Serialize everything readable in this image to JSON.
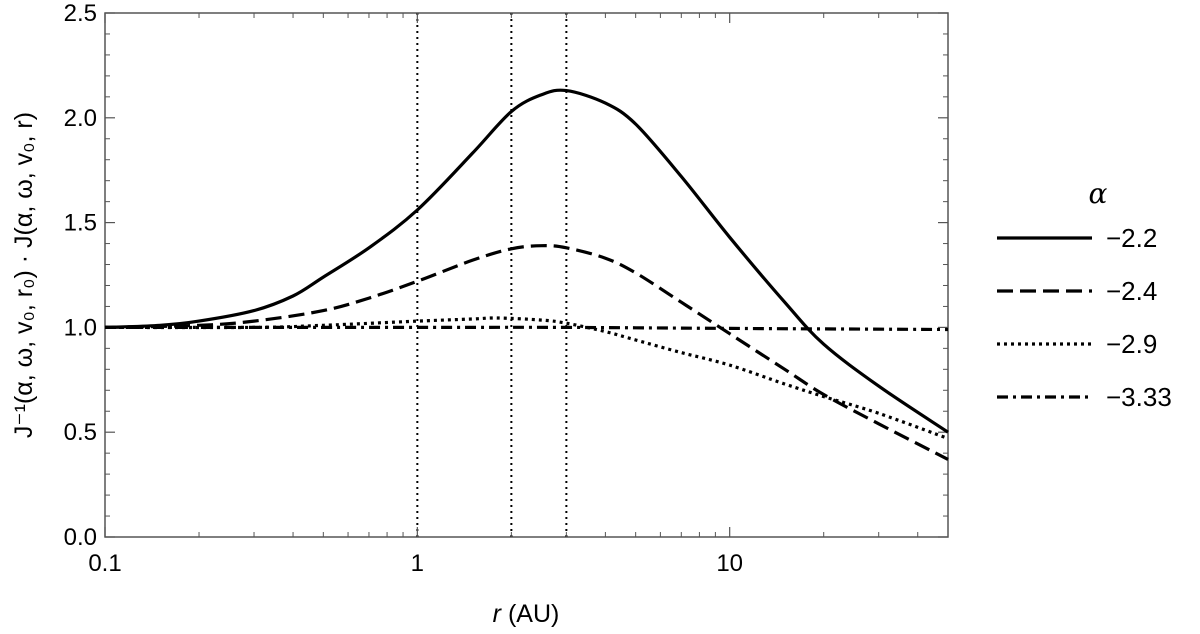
{
  "chart_data": {
    "type": "line",
    "xlabel": {
      "var": "r",
      "unit": " (AU)"
    },
    "ylabel": "J⁻¹(α, ω, v₀, r₀) · J(α, ω, v₀, r)",
    "x_scale": "log",
    "xlim": [
      0.1,
      50
    ],
    "ylim": [
      0.0,
      2.5
    ],
    "x_ticks": [
      {
        "value": 0.1,
        "label": "0.1"
      },
      {
        "value": 1,
        "label": "1"
      },
      {
        "value": 10,
        "label": "10"
      }
    ],
    "y_ticks": [
      {
        "value": 0.0,
        "label": "0.0"
      },
      {
        "value": 0.5,
        "label": "0.5"
      },
      {
        "value": 1.0,
        "label": "1.0"
      },
      {
        "value": 1.5,
        "label": "1.5"
      },
      {
        "value": 2.0,
        "label": "2.0"
      },
      {
        "value": 2.5,
        "label": "2.5"
      }
    ],
    "vertical_lines": [
      1,
      2,
      3
    ],
    "legend_title": "α",
    "legend_position": "right",
    "series": [
      {
        "name": "−2.2",
        "style": "solid",
        "x": [
          0.1,
          0.15,
          0.2,
          0.3,
          0.4,
          0.5,
          0.7,
          1.0,
          1.5,
          2.0,
          2.5,
          3.0,
          4.0,
          5.0,
          7.0,
          10.0,
          15.0,
          20.0,
          30.0,
          50.0
        ],
        "y": [
          1.0,
          1.01,
          1.03,
          1.08,
          1.15,
          1.24,
          1.38,
          1.56,
          1.83,
          2.03,
          2.11,
          2.13,
          2.07,
          1.97,
          1.72,
          1.43,
          1.12,
          0.92,
          0.72,
          0.5
        ]
      },
      {
        "name": "−2.4",
        "style": "dashed",
        "x": [
          0.1,
          0.2,
          0.3,
          0.5,
          0.7,
          1.0,
          1.5,
          2.0,
          2.5,
          3.0,
          4.0,
          5.0,
          7.0,
          10.0,
          15.0,
          20.0,
          30.0,
          50.0
        ],
        "y": [
          1.0,
          1.01,
          1.03,
          1.08,
          1.14,
          1.22,
          1.32,
          1.375,
          1.39,
          1.38,
          1.33,
          1.26,
          1.12,
          0.97,
          0.8,
          0.68,
          0.54,
          0.37
        ]
      },
      {
        "name": "−2.9",
        "style": "dotted",
        "x": [
          0.1,
          0.3,
          0.5,
          1.0,
          1.5,
          1.8,
          2.5,
          3.0,
          4.0,
          5.0,
          7.0,
          10.0,
          15.0,
          20.0,
          30.0,
          50.0
        ],
        "y": [
          1.0,
          1.0,
          1.01,
          1.03,
          1.04,
          1.045,
          1.035,
          1.02,
          0.98,
          0.94,
          0.88,
          0.82,
          0.73,
          0.67,
          0.59,
          0.47
        ]
      },
      {
        "name": "−3.33",
        "style": "dashdot",
        "x": [
          0.1,
          1.0,
          3.0,
          10.0,
          50.0
        ],
        "y": [
          1.0,
          1.0,
          1.0,
          0.995,
          0.99
        ]
      }
    ]
  }
}
